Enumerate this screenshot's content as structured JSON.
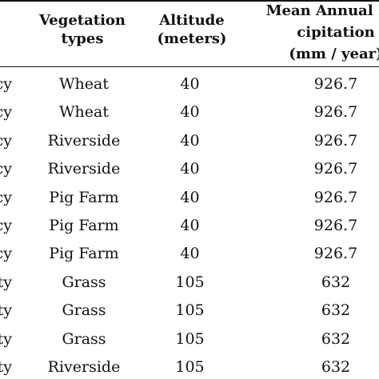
{
  "table": {
    "headers": {
      "vegetation": [
        "Vegetation",
        "types"
      ],
      "altitude": [
        "Altitude",
        "(meters)"
      ],
      "precipitation": [
        "Mean Annual Pre",
        "cipitation",
        "(mm / year)"
      ]
    },
    "rows": [
      {
        "location_tail": "cy",
        "vegetation": "Wheat",
        "altitude": "40",
        "precipitation": "926.7"
      },
      {
        "location_tail": "cy",
        "vegetation": "Wheat",
        "altitude": "40",
        "precipitation": "926.7"
      },
      {
        "location_tail": "cy",
        "vegetation": "Riverside",
        "altitude": "40",
        "precipitation": "926.7"
      },
      {
        "location_tail": "cy",
        "vegetation": "Riverside",
        "altitude": "40",
        "precipitation": "926.7"
      },
      {
        "location_tail": "cy",
        "vegetation": "Pig Farm",
        "altitude": "40",
        "precipitation": "926.7"
      },
      {
        "location_tail": "cy",
        "vegetation": "Pig Farm",
        "altitude": "40",
        "precipitation": "926.7"
      },
      {
        "location_tail": "cy",
        "vegetation": "Pig Farm",
        "altitude": "40",
        "precipitation": "926.7"
      },
      {
        "location_tail": "ity",
        "vegetation": "Grass",
        "altitude": "105",
        "precipitation": "632"
      },
      {
        "location_tail": "ity",
        "vegetation": "Grass",
        "altitude": "105",
        "precipitation": "632"
      },
      {
        "location_tail": "ity",
        "vegetation": "Grass",
        "altitude": "105",
        "precipitation": "632"
      },
      {
        "location_tail": "ity",
        "vegetation": "Riverside",
        "altitude": "105",
        "precipitation": "632"
      }
    ]
  }
}
